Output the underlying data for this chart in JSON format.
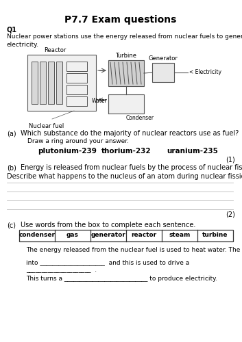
{
  "title": "P7.7 Exam questions",
  "background_color": "#ffffff",
  "text_color": "#000000",
  "q1_label": "Q1",
  "q1_intro": "Nuclear power stations use the energy released from nuclear fuels to generate\nelectricity.",
  "reactor_label": "Reactor",
  "turbine_label": "Turbine",
  "generator_label": "Generator",
  "electricity_label": "< Electricity",
  "water_label": "Water",
  "condenser_label": "Condenser",
  "nuclear_fuel_label": "Nuclear fuel",
  "qa_label": "(a)",
  "qa_text": "Which substance do the majority of nuclear reactors use as fuel?",
  "qa_sub": "Draw a ring around your answer.",
  "answers": [
    "plutonium-239",
    "thorium-232",
    "uranium-235"
  ],
  "mark1": "(1)",
  "qb_label": "(b)",
  "qb_text": "Energy is released from nuclear fuels by the process of nuclear fission.",
  "qb_sub": "Describe what happens to the nucleus of an atom during nuclear fission.",
  "mark2": "(2)",
  "qc_label": "(c)",
  "qc_text": "Use words from the box to complete each sentence.",
  "box_words": [
    "condenser",
    "gas",
    "generator",
    "reactor",
    "steam",
    "turbine"
  ],
  "sent1": "The energy released from the nuclear fuel is used to heat water. The water turns",
  "sent2": "into _____________________  and this is used to drive a",
  "sent3": "_____________________  .",
  "sent4": "This turns a ___________________________ to produce electricity."
}
